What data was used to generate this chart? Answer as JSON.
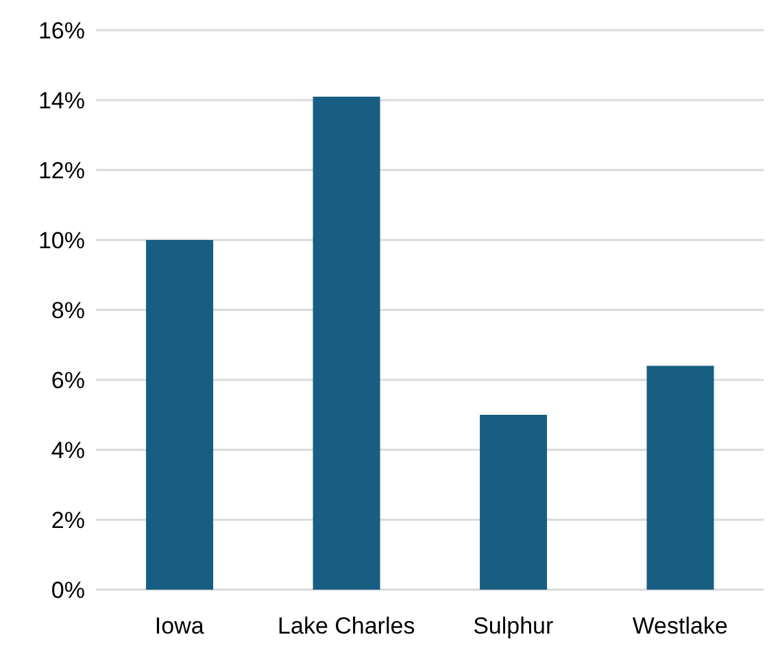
{
  "chart_data": {
    "type": "bar",
    "categories": [
      "Iowa",
      "Lake Charles",
      "Sulphur",
      "Westlake"
    ],
    "values": [
      10,
      14.1,
      5,
      6.4
    ],
    "color": "#175e82",
    "ylim": [
      0,
      16
    ],
    "yticks": [
      {
        "value": 0,
        "label": "0%"
      },
      {
        "value": 2,
        "label": "2%"
      },
      {
        "value": 4,
        "label": "4%"
      },
      {
        "value": 6,
        "label": "6%"
      },
      {
        "value": 8,
        "label": "8%"
      },
      {
        "value": 10,
        "label": "10%"
      },
      {
        "value": 12,
        "label": "12%"
      },
      {
        "value": 14,
        "label": "14%"
      },
      {
        "value": 16,
        "label": "16%"
      }
    ],
    "grid": "y"
  }
}
